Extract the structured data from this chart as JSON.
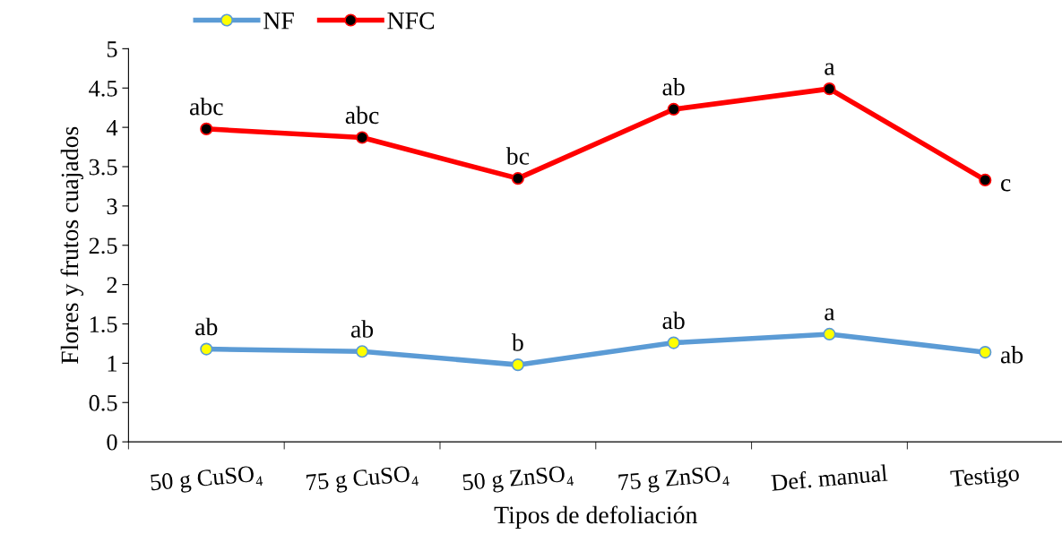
{
  "chart_data": {
    "type": "line",
    "xlabel": "Tipos de defoliación",
    "ylabel": "Flores y frutos cuajados",
    "categories": [
      "50 g CuSO₄",
      "75 g CuSO₄",
      "50 g ZnSO₄",
      "75 g ZnSO₄",
      "Def. manual",
      "Testigo"
    ],
    "series": [
      {
        "name": "NF",
        "color": "#5b9bd5",
        "values": [
          1.18,
          1.15,
          0.98,
          1.26,
          1.37,
          1.14
        ]
      },
      {
        "name": "NFC",
        "color": "#ff0000",
        "values": [
          3.98,
          3.87,
          3.35,
          4.23,
          4.49,
          3.33
        ]
      }
    ],
    "ylim": [
      0,
      5
    ],
    "yticks": [
      0,
      0.5,
      1,
      1.5,
      2,
      2.5,
      3,
      3.5,
      4,
      4.5,
      5
    ],
    "grid": false,
    "legend": "top",
    "marker": "circle",
    "line_style": "solid",
    "annotations": [
      {
        "text": "ab",
        "x": "50 g CuSO₄",
        "y": 1.18
      },
      {
        "text": "ab",
        "x": "75 g CuSO₄",
        "y": 1.15
      },
      {
        "text": "b",
        "x": "50 g ZnSO₄",
        "y": 0.98
      },
      {
        "text": "ab",
        "x": "75 g ZnSO₄",
        "y": 1.26
      },
      {
        "text": "a",
        "x": "Def. manual",
        "y": 1.37
      },
      {
        "text": "ab",
        "x": "Testigo",
        "y": 1.14
      },
      {
        "text": "abc",
        "x": "50 g CuSO₄",
        "y": 3.98
      },
      {
        "text": "abc",
        "x": "75 g CuSO₄",
        "y": 3.87
      },
      {
        "text": "bc",
        "x": "50 g ZnSO₄",
        "y": 3.35
      },
      {
        "text": "ab",
        "x": "75 g ZnSO₄",
        "y": 4.23
      },
      {
        "text": "a",
        "x": "Def. manual",
        "y": 4.49
      },
      {
        "text": "c",
        "x": "Testigo",
        "y": 3.33
      }
    ]
  }
}
